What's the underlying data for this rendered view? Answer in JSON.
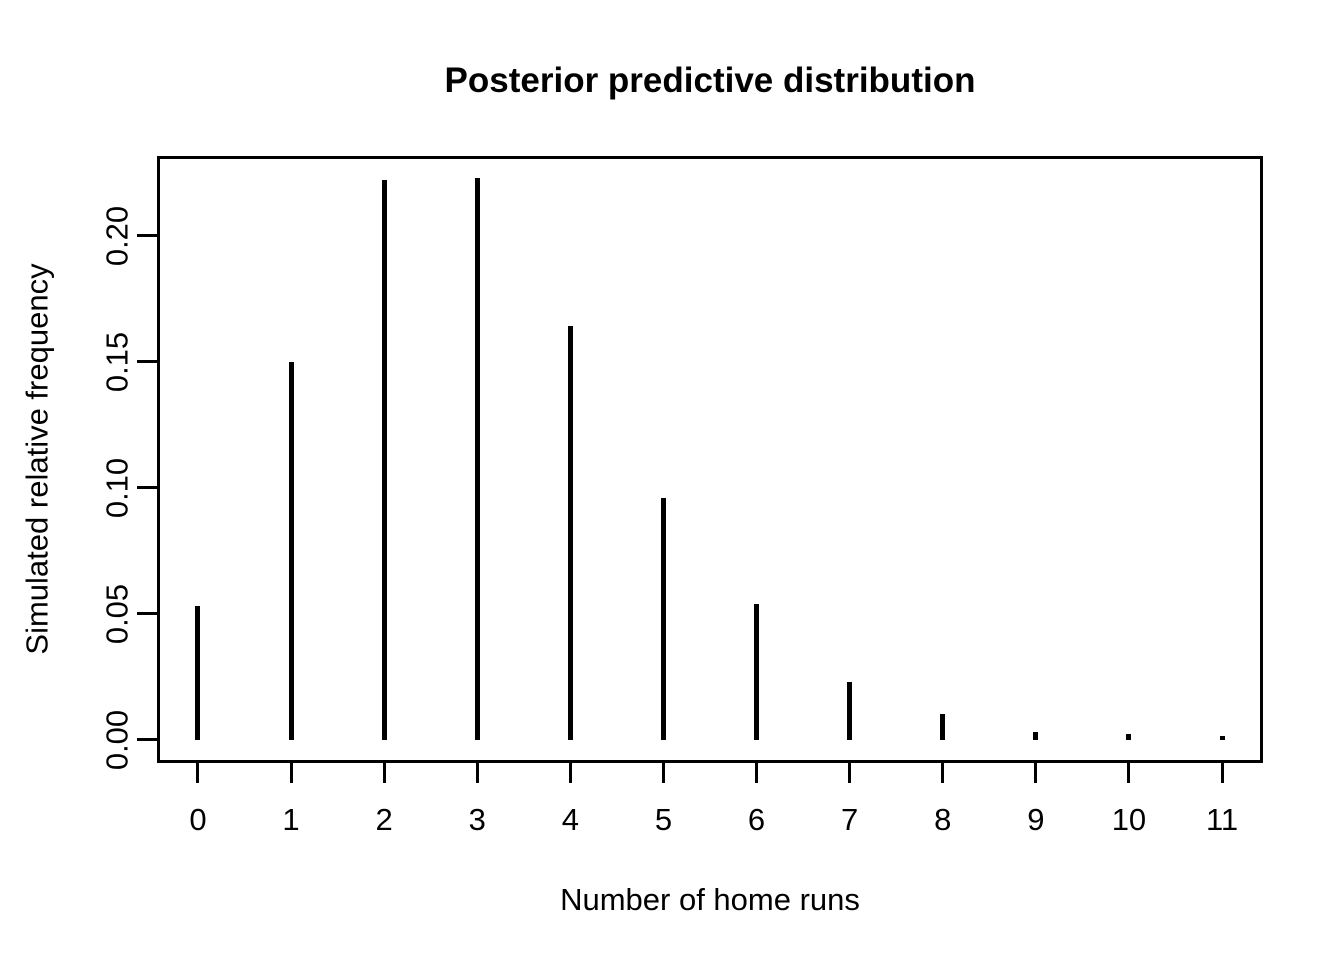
{
  "chart_data": {
    "type": "bar",
    "subtype": "spike-plot",
    "title": "Posterior predictive distribution",
    "xlabel": "Number of home runs",
    "ylabel": "Simulated relative frequency",
    "categories": [
      0,
      1,
      2,
      3,
      4,
      5,
      6,
      7,
      8,
      9,
      10,
      11
    ],
    "values": [
      0.053,
      0.15,
      0.222,
      0.223,
      0.164,
      0.096,
      0.054,
      0.023,
      0.01,
      0.003,
      0.0024,
      0.0013
    ],
    "x_tick_labels": [
      "0",
      "1",
      "2",
      "3",
      "4",
      "5",
      "6",
      "7",
      "8",
      "9",
      "10",
      "11"
    ],
    "y_tick_values": [
      0.0,
      0.05,
      0.1,
      0.15,
      0.2
    ],
    "y_tick_labels": [
      "0.00",
      "0.05",
      "0.10",
      "0.15",
      "0.20"
    ],
    "xlim": [
      -0.44,
      11.44
    ],
    "ylim": [
      -0.0093,
      0.2316
    ],
    "grid": false,
    "legend": null,
    "colors": {
      "spike": "#000000",
      "axis": "#000000",
      "text": "#000000",
      "background": "#ffffff"
    }
  }
}
